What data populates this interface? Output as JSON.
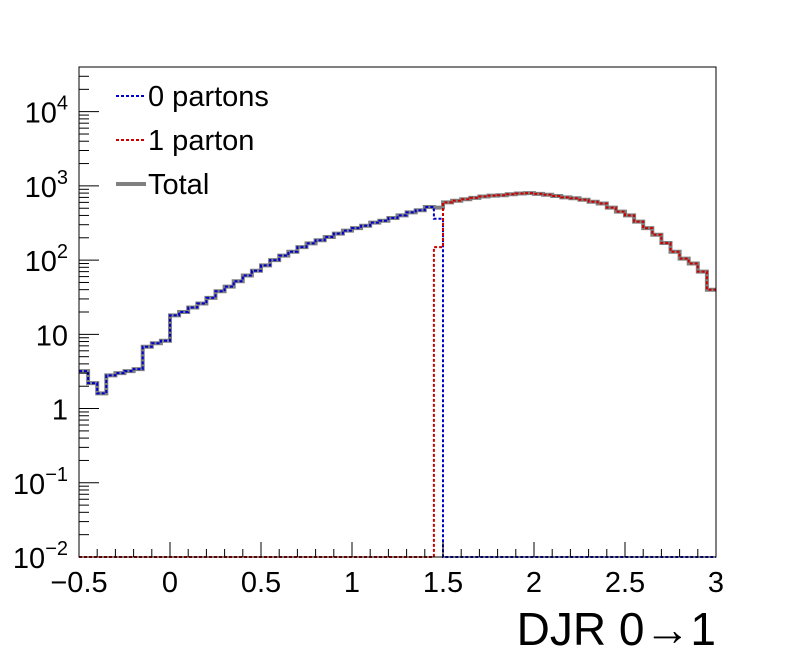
{
  "chart_data": {
    "type": "line",
    "xlabel": "DJR 0→1",
    "ylabel": "",
    "title": "",
    "xlim": [
      -0.5,
      3.0
    ],
    "ylim": [
      0.01,
      40000
    ],
    "yscale": "log",
    "grid": false,
    "legend_position": "top-left",
    "x_tick_labels": [
      "−0.5",
      "0",
      "0.5",
      "1",
      "1.5",
      "2",
      "2.5",
      "3"
    ],
    "x_tick_values": [
      -0.5,
      0,
      0.5,
      1,
      1.5,
      2,
      2.5,
      3
    ],
    "y_ticks": [
      {
        "value": 0.01,
        "base": "10",
        "exp": "−2"
      },
      {
        "value": 0.1,
        "base": "10",
        "exp": "−1"
      },
      {
        "value": 1,
        "base": "1",
        "exp": ""
      },
      {
        "value": 10,
        "base": "10",
        "exp": ""
      },
      {
        "value": 100,
        "base": "10",
        "exp": "2"
      },
      {
        "value": 1000,
        "base": "10",
        "exp": "3"
      },
      {
        "value": 10000,
        "base": "10",
        "exp": "4"
      }
    ],
    "bin_edges": [
      -0.5,
      -0.45,
      -0.4,
      -0.35,
      -0.3,
      -0.25,
      -0.2,
      -0.15,
      -0.1,
      -0.05,
      0,
      0.05,
      0.1,
      0.15,
      0.2,
      0.25,
      0.3,
      0.35,
      0.4,
      0.45,
      0.5,
      0.55,
      0.6,
      0.65,
      0.7,
      0.75,
      0.8,
      0.85,
      0.9,
      0.95,
      1.0,
      1.05,
      1.1,
      1.15,
      1.2,
      1.25,
      1.3,
      1.35,
      1.4,
      1.45,
      1.5,
      1.55,
      1.6,
      1.65,
      1.7,
      1.75,
      1.8,
      1.85,
      1.9,
      1.95,
      2.0,
      2.05,
      2.1,
      2.15,
      2.2,
      2.25,
      2.3,
      2.35,
      2.4,
      2.45,
      2.5,
      2.55,
      2.6,
      2.65,
      2.7,
      2.75,
      2.8,
      2.85,
      2.9,
      2.95,
      3.0
    ],
    "series": [
      {
        "name": "0 partons",
        "color": "#0000cc",
        "style": "dotted",
        "values": [
          3.2,
          2.2,
          1.6,
          2.8,
          3.0,
          3.2,
          3.4,
          6.8,
          7.6,
          8.2,
          18,
          20,
          23,
          26,
          31,
          38,
          44,
          52,
          62,
          72,
          85,
          100,
          115,
          130,
          150,
          168,
          185,
          205,
          228,
          250,
          270,
          290,
          320,
          340,
          370,
          400,
          440,
          470,
          520,
          360,
          0.01,
          0.01,
          0.01,
          0.01,
          0.01,
          0.01,
          0.01,
          0.01,
          0.01,
          0.01,
          0.01,
          0.01,
          0.01,
          0.01,
          0.01,
          0.01,
          0.01,
          0.01,
          0.01,
          0.01,
          0.01,
          0.01,
          0.01,
          0.01,
          0.01,
          0.01,
          0.01,
          0.01,
          0.01,
          0.01
        ]
      },
      {
        "name": "1 parton",
        "color": "#cc0000",
        "style": "dotted",
        "values": [
          0.01,
          0.01,
          0.01,
          0.01,
          0.01,
          0.01,
          0.01,
          0.01,
          0.01,
          0.01,
          0.01,
          0.01,
          0.01,
          0.01,
          0.01,
          0.01,
          0.01,
          0.01,
          0.01,
          0.01,
          0.01,
          0.01,
          0.01,
          0.01,
          0.01,
          0.01,
          0.01,
          0.01,
          0.01,
          0.01,
          0.01,
          0.01,
          0.01,
          0.01,
          0.01,
          0.01,
          0.01,
          0.01,
          0.01,
          150,
          600,
          630,
          660,
          690,
          720,
          740,
          750,
          770,
          790,
          800,
          780,
          760,
          730,
          700,
          680,
          650,
          610,
          580,
          510,
          450,
          400,
          330,
          270,
          220,
          170,
          130,
          105,
          90,
          70,
          40
        ]
      },
      {
        "name": "Total",
        "color": "#808080",
        "style": "solid",
        "values": [
          3.2,
          2.2,
          1.6,
          2.8,
          3.0,
          3.2,
          3.4,
          6.8,
          7.6,
          8.2,
          18,
          20,
          23,
          26,
          31,
          38,
          44,
          52,
          62,
          72,
          85,
          100,
          115,
          130,
          150,
          168,
          185,
          205,
          228,
          250,
          270,
          290,
          320,
          340,
          370,
          400,
          440,
          470,
          520,
          510,
          600,
          630,
          660,
          690,
          720,
          740,
          750,
          770,
          790,
          800,
          780,
          760,
          730,
          700,
          680,
          650,
          610,
          580,
          510,
          450,
          400,
          330,
          270,
          220,
          170,
          130,
          105,
          90,
          70,
          40
        ]
      }
    ]
  }
}
